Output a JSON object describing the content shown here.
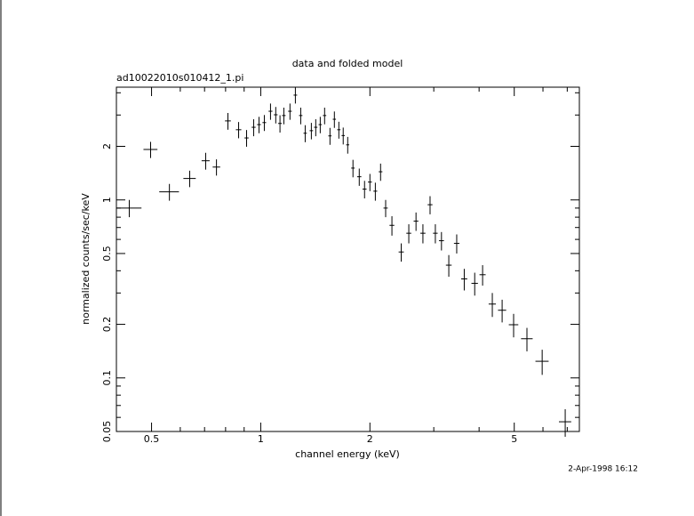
{
  "chart_data": {
    "type": "scatter",
    "title": "data and folded model",
    "subtitle": "ad10022010s010412_1.pi",
    "xlabel": "channel energy (keV)",
    "ylabel": "normalized counts/sec/keV",
    "timestamp": "2-Apr-1998 16:12",
    "xscale": "log",
    "yscale": "log",
    "xlim": [
      0.4,
      7.56
    ],
    "ylim": [
      0.05,
      4.3
    ],
    "xticks": [
      0.5,
      1,
      2,
      5
    ],
    "xminorticks": [
      0.6,
      0.7,
      0.8,
      0.9,
      3,
      4,
      6,
      7
    ],
    "yticks": [
      0.05,
      0.1,
      0.2,
      0.5,
      1,
      2
    ],
    "yminorticks": [
      0.06,
      0.07,
      0.08,
      0.09,
      0.3,
      0.4,
      0.6,
      0.7,
      0.8,
      0.9,
      3,
      4
    ],
    "color": "#000000",
    "x": [
      0.434,
      0.497,
      0.56,
      0.637,
      0.705,
      0.755,
      0.812,
      0.869,
      0.914,
      0.956,
      0.989,
      1.023,
      1.064,
      1.1,
      1.13,
      1.158,
      1.204,
      1.246,
      1.289,
      1.326,
      1.379,
      1.418,
      1.459,
      1.5,
      1.552,
      1.596,
      1.642,
      1.688,
      1.737,
      1.796,
      1.869,
      1.933,
      2.0,
      2.07,
      2.14,
      2.21,
      2.3,
      2.44,
      2.56,
      2.68,
      2.8,
      2.93,
      3.03,
      3.15,
      3.3,
      3.47,
      3.64,
      3.89,
      4.09,
      4.35,
      4.63,
      4.98,
      5.42,
      5.97,
      6.91
    ],
    "xerr": [
      0.035,
      0.022,
      0.035,
      0.025,
      0.018,
      0.018,
      0.015,
      0.015,
      0.012,
      0.012,
      0.012,
      0.012,
      0.013,
      0.013,
      0.013,
      0.013,
      0.014,
      0.014,
      0.014,
      0.014,
      0.015,
      0.015,
      0.015,
      0.016,
      0.016,
      0.016,
      0.017,
      0.017,
      0.017,
      0.02,
      0.025,
      0.025,
      0.025,
      0.025,
      0.025,
      0.03,
      0.035,
      0.04,
      0.04,
      0.04,
      0.045,
      0.045,
      0.045,
      0.05,
      0.06,
      0.06,
      0.07,
      0.08,
      0.08,
      0.1,
      0.12,
      0.15,
      0.2,
      0.25,
      0.27
    ],
    "values": [
      0.9,
      1.92,
      1.11,
      1.32,
      1.66,
      1.53,
      2.78,
      2.48,
      2.23,
      2.56,
      2.65,
      2.72,
      3.15,
      3.01,
      2.69,
      2.98,
      3.15,
      3.88,
      2.98,
      2.37,
      2.45,
      2.56,
      2.65,
      2.98,
      2.29,
      2.84,
      2.48,
      2.3,
      2.04,
      1.51,
      1.35,
      1.15,
      1.26,
      1.12,
      1.44,
      0.9,
      0.72,
      0.51,
      0.65,
      0.76,
      0.65,
      0.94,
      0.65,
      0.59,
      0.43,
      0.57,
      0.36,
      0.34,
      0.38,
      0.26,
      0.24,
      0.199,
      0.166,
      0.124,
      0.0567
    ],
    "yerr": [
      0.1,
      0.2,
      0.12,
      0.14,
      0.18,
      0.16,
      0.3,
      0.26,
      0.24,
      0.28,
      0.28,
      0.28,
      0.33,
      0.32,
      0.3,
      0.32,
      0.33,
      0.4,
      0.32,
      0.26,
      0.26,
      0.28,
      0.28,
      0.32,
      0.25,
      0.3,
      0.27,
      0.25,
      0.22,
      0.17,
      0.15,
      0.13,
      0.14,
      0.13,
      0.16,
      0.1,
      0.09,
      0.06,
      0.08,
      0.09,
      0.08,
      0.11,
      0.08,
      0.07,
      0.06,
      0.07,
      0.05,
      0.05,
      0.05,
      0.04,
      0.035,
      0.03,
      0.025,
      0.02,
      0.01
    ]
  }
}
